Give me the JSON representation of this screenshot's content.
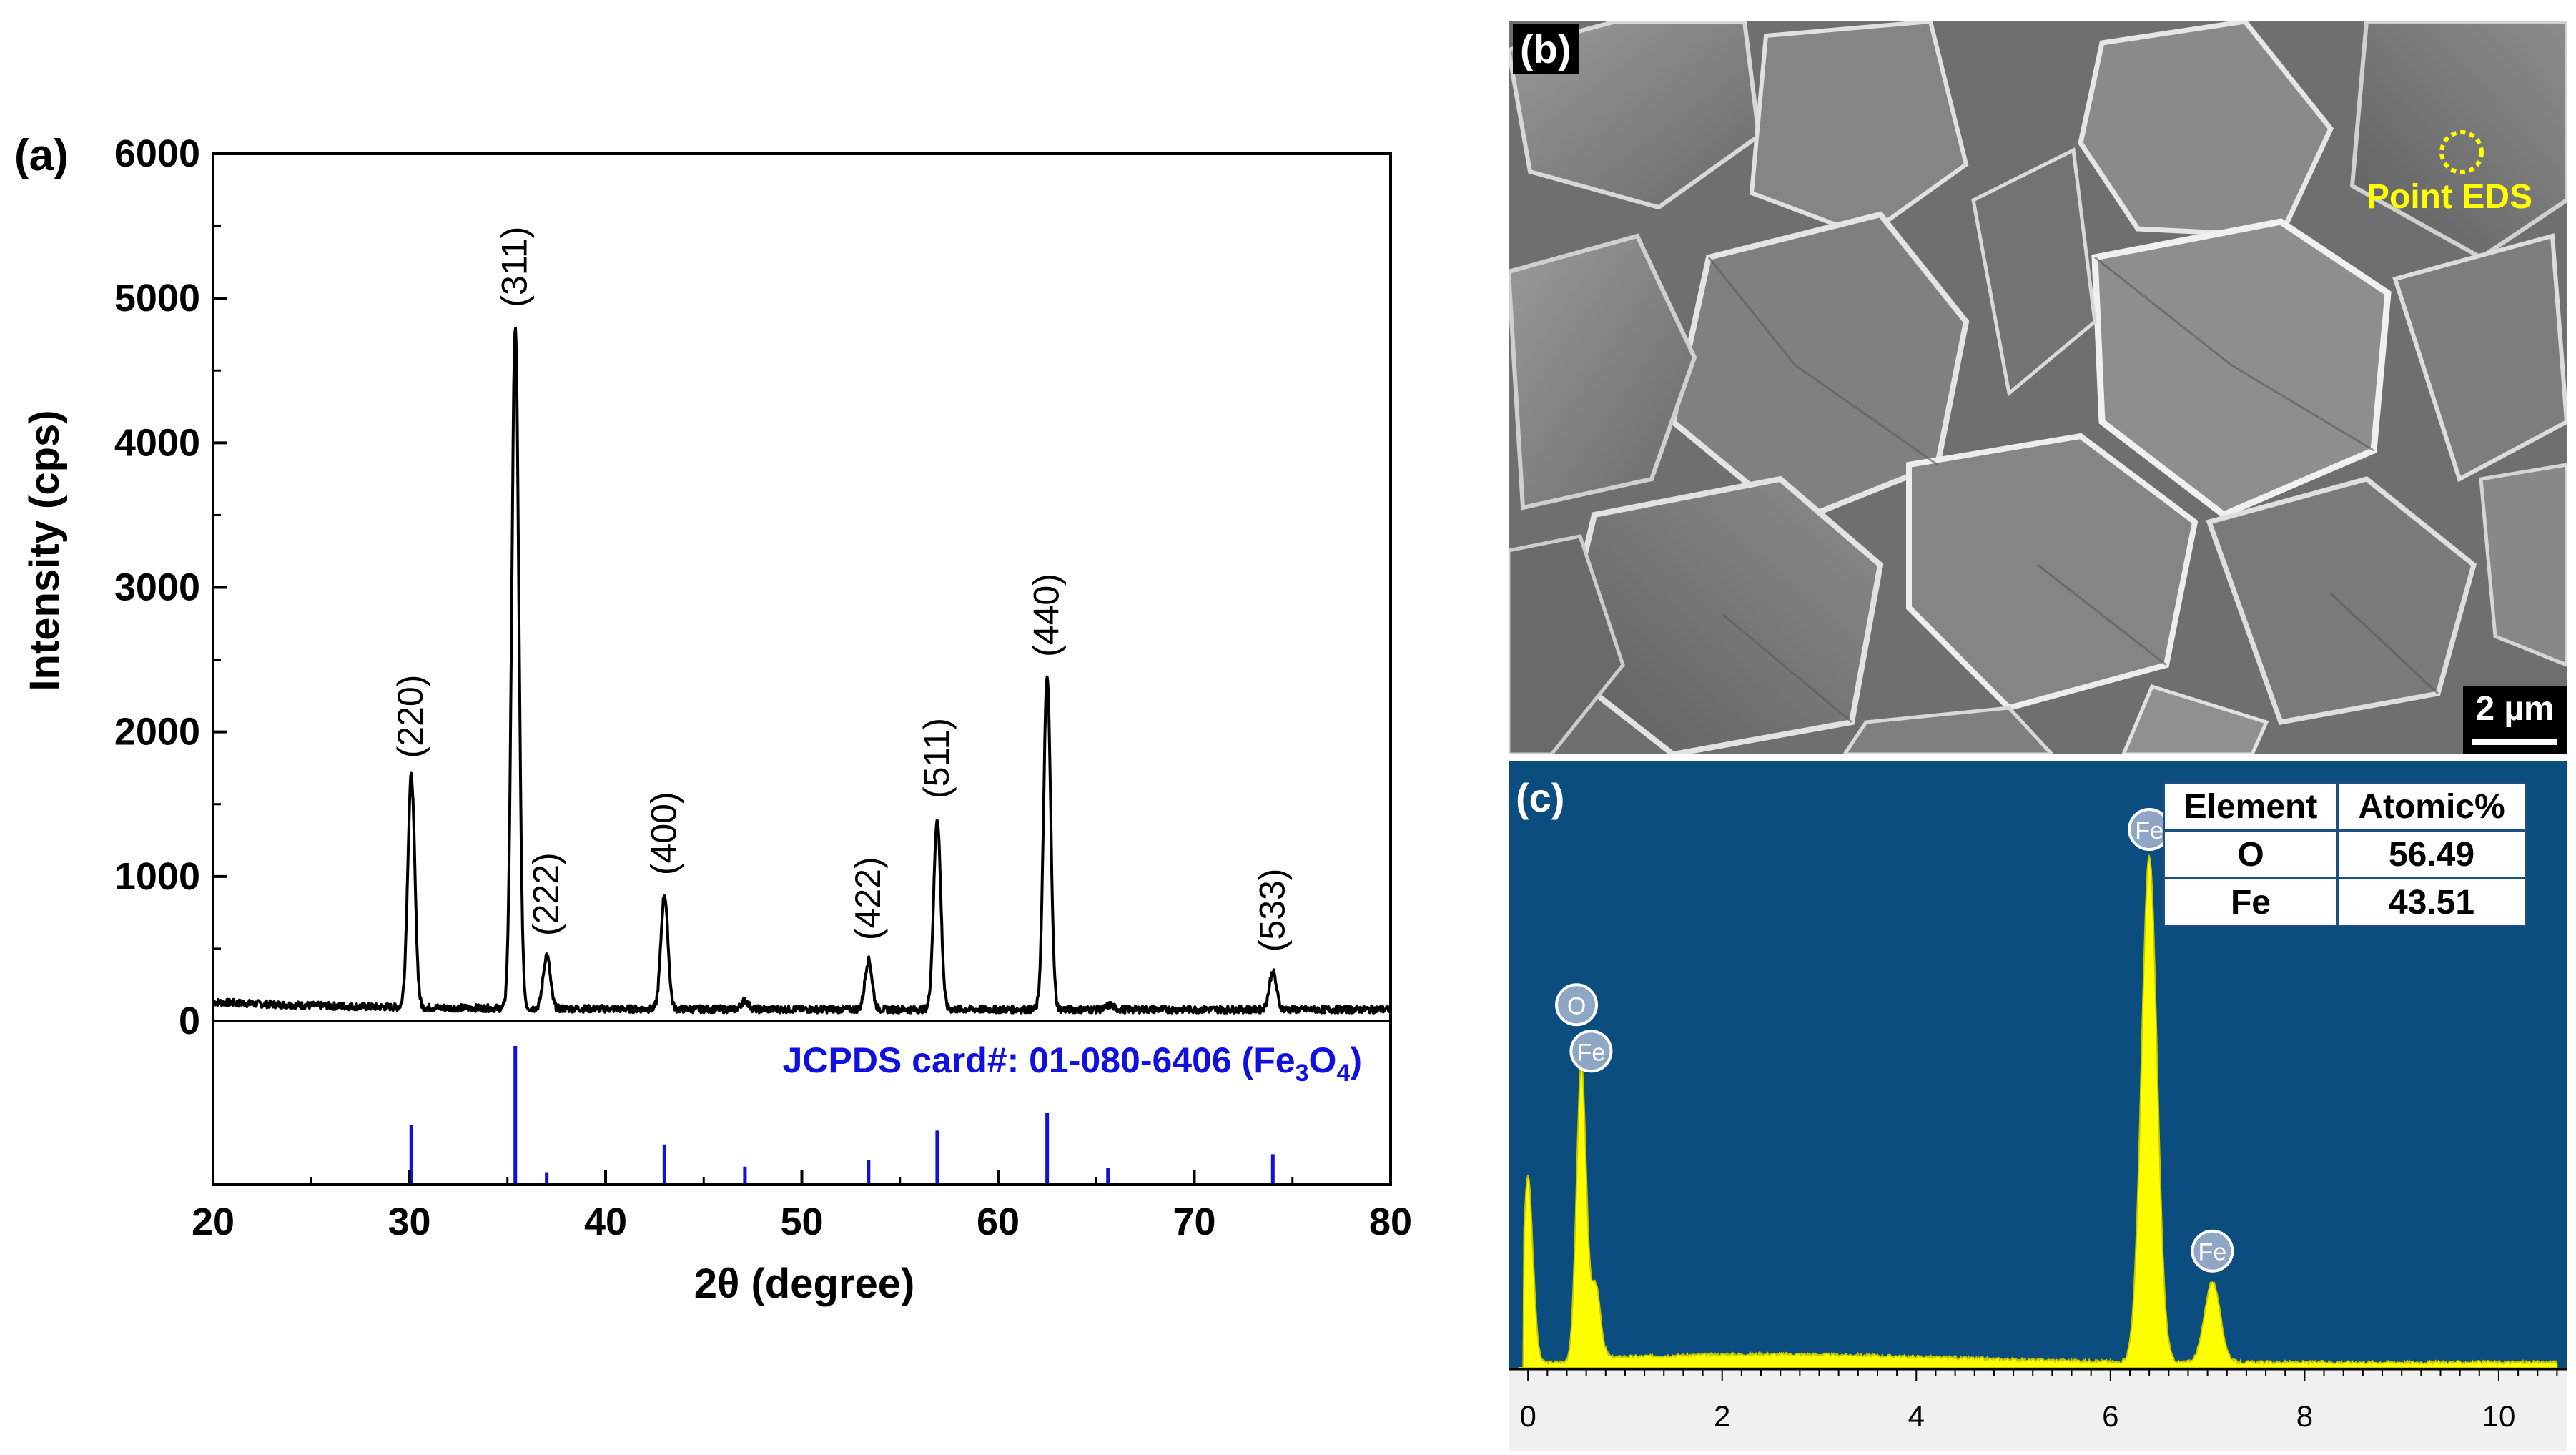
{
  "xrd": {
    "panel_label": "(a)",
    "xlabel": "2θ (degree)",
    "ylabel": "Intensity (cps)",
    "reference_prefix": "JCPDS card#: 01-080-6406 (Fe",
    "reference_sub1": "3",
    "reference_mid": "O",
    "reference_sub2": "4",
    "reference_suffix": ")",
    "colors": {
      "pattern": "#000000",
      "reference": "#1010e0"
    }
  },
  "sem": {
    "panel_label": "(b)",
    "point_label": "Point EDS",
    "scale_bar_label": "2 µm",
    "colors": {
      "annotation": "#ffff00"
    }
  },
  "eds": {
    "panel_label": "(c)",
    "table": {
      "headers": [
        "Element",
        "Atomic%"
      ],
      "rows": [
        [
          "O",
          "56.49"
        ],
        [
          "Fe",
          "43.51"
        ]
      ]
    },
    "colors": {
      "background": "#0b4d7e",
      "spectrum": "#ffff00"
    }
  },
  "chart_data": [
    {
      "type": "line",
      "title": "",
      "xlabel": "2θ (degree)",
      "ylabel": "Intensity (cps)",
      "xlim": [
        20,
        80
      ],
      "ylim": [
        0,
        6000
      ],
      "x_ticks": [
        20,
        30,
        40,
        50,
        60,
        70,
        80
      ],
      "y_ticks": [
        0,
        1000,
        2000,
        3000,
        4000,
        5000,
        6000
      ],
      "baseline": 80,
      "peaks": [
        {
          "x": 30.1,
          "y": 1680,
          "label": "(220)"
        },
        {
          "x": 35.4,
          "y": 4800,
          "label": "(311)"
        },
        {
          "x": 37.0,
          "y": 450,
          "label": "(222)"
        },
        {
          "x": 43.0,
          "y": 870,
          "label": "(400)"
        },
        {
          "x": 47.1,
          "y": 140,
          "label": ""
        },
        {
          "x": 53.4,
          "y": 420,
          "label": "(422)"
        },
        {
          "x": 56.9,
          "y": 1400,
          "label": "(511)"
        },
        {
          "x": 62.5,
          "y": 2380,
          "label": "(440)"
        },
        {
          "x": 65.7,
          "y": 110,
          "label": ""
        },
        {
          "x": 74.0,
          "y": 340,
          "label": "(533)"
        }
      ],
      "reference_lines": {
        "name": "JCPDS card#: 01-080-6406 (Fe3O4)",
        "x": [
          30.1,
          35.4,
          37.0,
          43.0,
          47.1,
          53.4,
          56.9,
          62.5,
          65.6,
          74.0
        ],
        "relative_intensity": [
          0.43,
          1.0,
          0.09,
          0.29,
          0.13,
          0.18,
          0.39,
          0.52,
          0.12,
          0.22
        ]
      },
      "grid": false
    },
    {
      "type": "line",
      "title": "",
      "xlabel": "",
      "ylabel": "",
      "xlim": [
        -0.2,
        10.7
      ],
      "x_ticks": [
        0,
        2,
        4,
        6,
        8,
        10
      ],
      "ylim": [
        0,
        100
      ],
      "peaks": [
        {
          "x": 0.0,
          "y": 38,
          "label": ""
        },
        {
          "x": 0.55,
          "y": 59,
          "label": "O"
        },
        {
          "x": 0.7,
          "y": 15,
          "label": "Fe"
        },
        {
          "x": 6.4,
          "y": 100,
          "label": "Fe"
        },
        {
          "x": 7.05,
          "y": 16,
          "label": "Fe"
        }
      ],
      "grid": false
    }
  ]
}
